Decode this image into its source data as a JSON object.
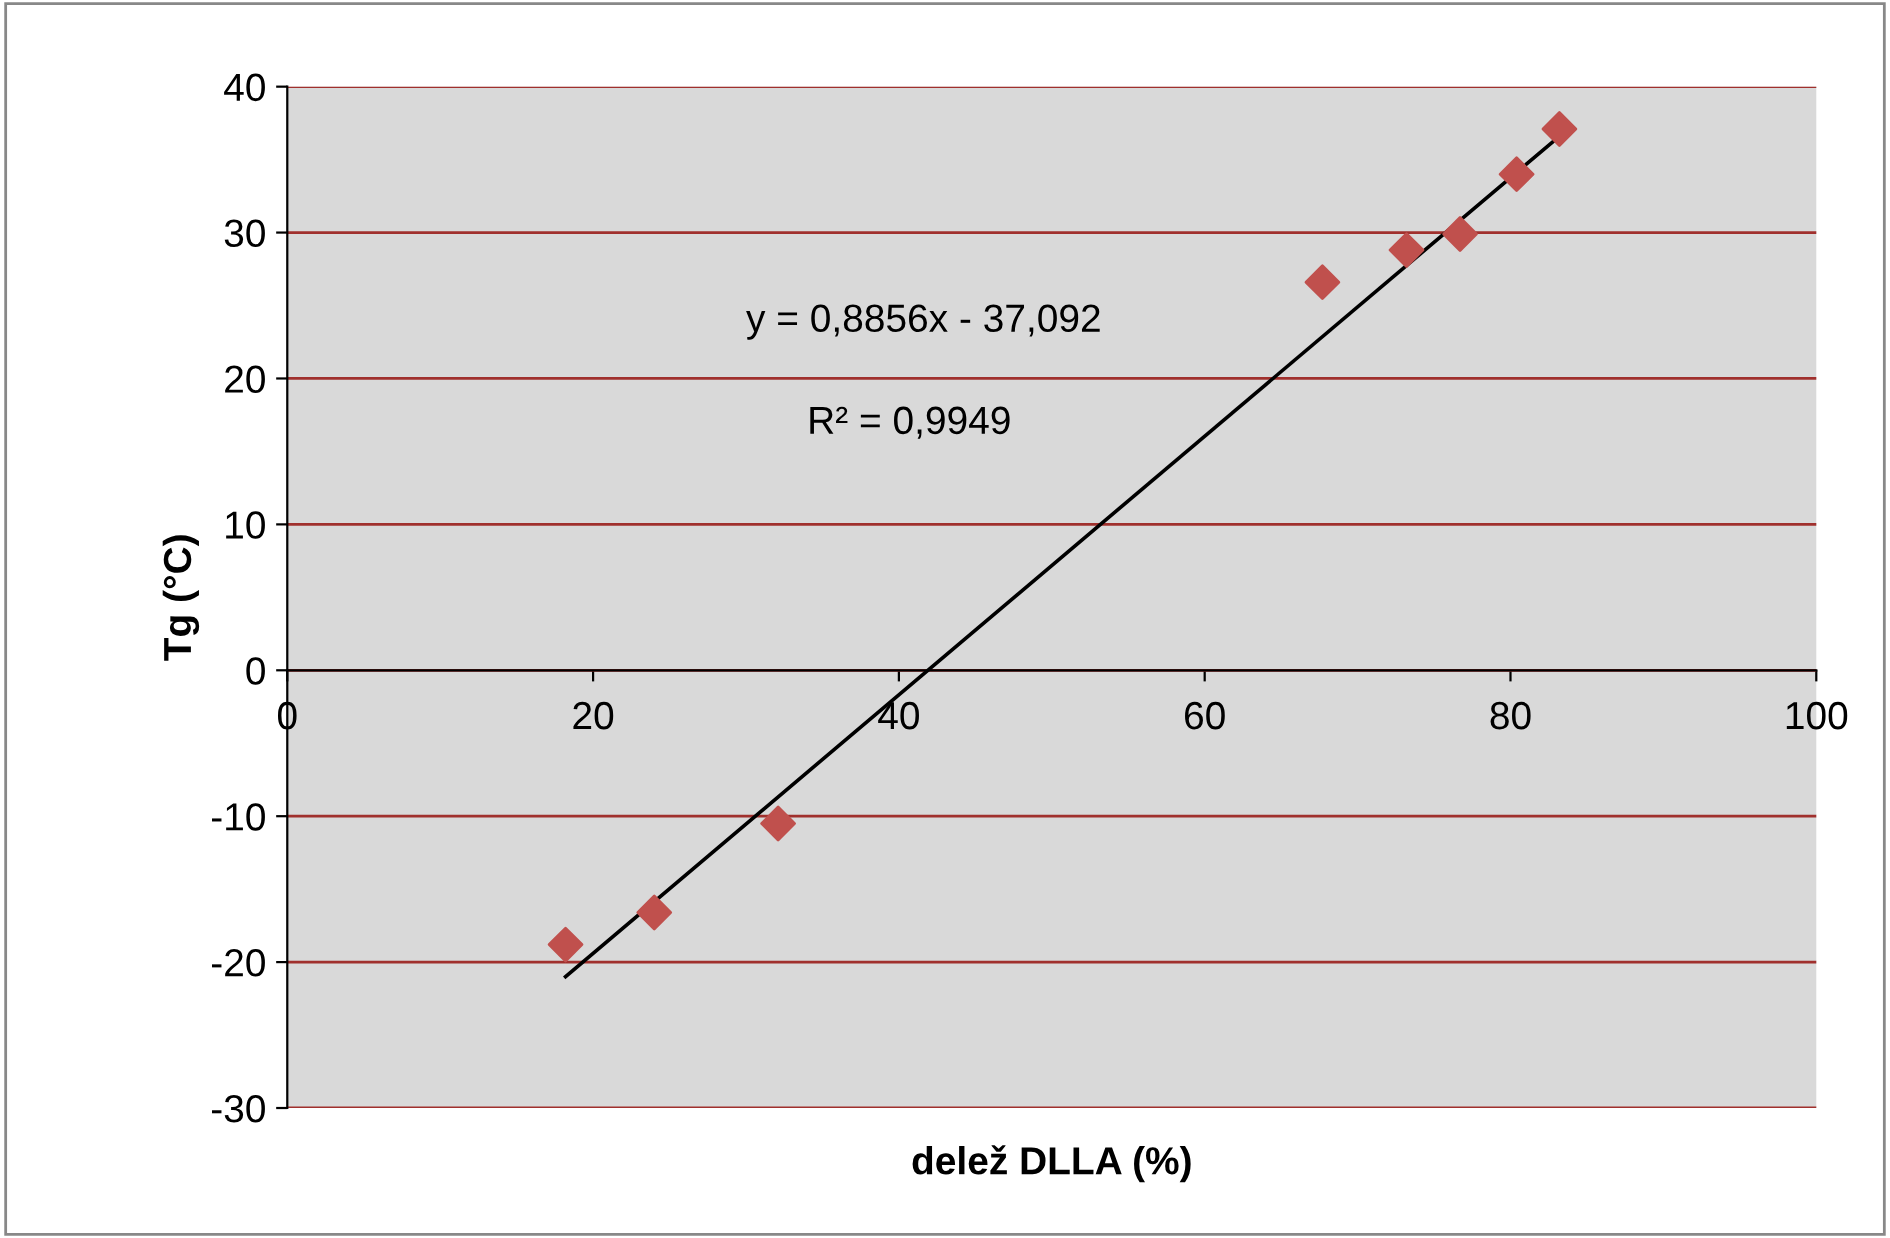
{
  "chart_data": {
    "type": "scatter",
    "xlabel": "delež DLLA (%)",
    "ylabel": "Tg (°C)",
    "grid": "y",
    "xlim": [
      0,
      100
    ],
    "ylim": [
      -30,
      40
    ],
    "xticks": [
      0,
      20,
      40,
      60,
      80,
      100
    ],
    "yticks": [
      -30,
      -20,
      -10,
      0,
      10,
      20,
      30,
      40
    ],
    "series": [
      {
        "marker": "diamond",
        "color": "#c0504d",
        "x": [
          18.2,
          24.0,
          32.1,
          67.7,
          73.2,
          76.7,
          80.4,
          83.2
        ],
        "values": [
          -18.8,
          -16.6,
          -10.5,
          26.6,
          28.8,
          29.9,
          34.0,
          37.1
        ]
      },
      {
        "type": "line",
        "color": "#000000",
        "x": [
          18.2,
          83.2
        ],
        "values": [
          -21.0,
          36.6
        ]
      }
    ],
    "annotations": [
      "y = 0,8856x - 37,092",
      "R² = 0,9949"
    ]
  }
}
